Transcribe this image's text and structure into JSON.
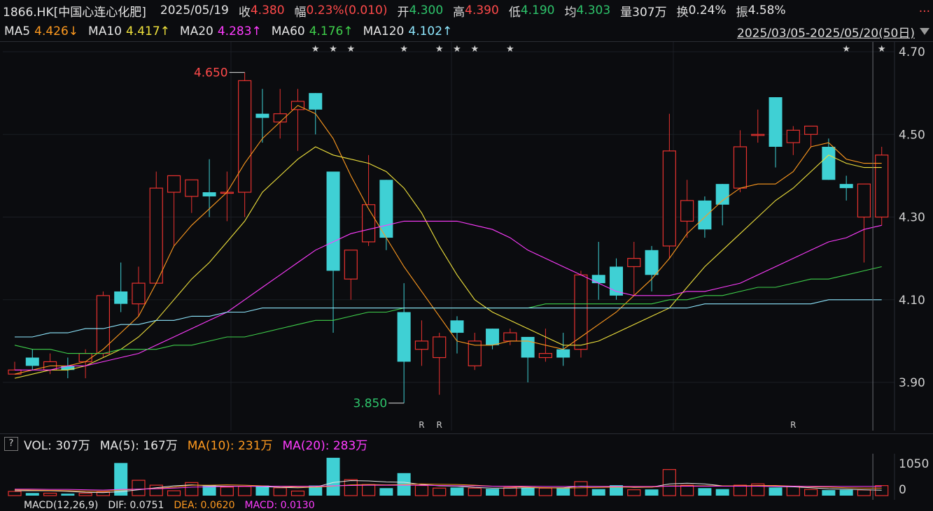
{
  "info": {
    "symbol": "1866.HK[中国心连心化肥]",
    "date": "2025/05/19",
    "close_label": "收",
    "close": "4.380",
    "change_label": "幅",
    "change": "0.23%(0.010)",
    "open_label": "开",
    "open": "4.300",
    "high_label": "高",
    "high": "4.390",
    "low_label": "低",
    "low": "4.190",
    "avg_label": "均",
    "avg": "4.303",
    "volume_label": "量",
    "volume": "307万",
    "turnover_label": "换",
    "turnover": "0.24%",
    "amplitude_label": "振",
    "amplitude": "4.58%",
    "more": "..."
  },
  "ma_bar": {
    "ma5_label": "MA5",
    "ma5": "4.426↓",
    "ma10_label": "MA10",
    "ma10": "4.417↑",
    "ma20_label": "MA20",
    "ma20": "4.283↑",
    "ma60_label": "MA60",
    "ma60": "4.176↑",
    "ma120_label": "MA120",
    "ma120": "4.102↑",
    "range": "2025/03/05-2025/05/20(50日)"
  },
  "vol_bar": {
    "help": "?",
    "vol": "VOL: 307万",
    "ma5": "MA(5): 167万",
    "ma10": "MA(10): 231万",
    "ma20": "MA(20): 283万"
  },
  "macd_bar": {
    "label": "MACD(12,26,9)",
    "dif": "DIF: 0.0751",
    "dea": "DEA: 0.0620",
    "macd": "MACD: 0.0130"
  },
  "colors": {
    "up": "#e8322f",
    "down": "#3fd0d4",
    "ma5": "#ff9a1f",
    "ma10": "#f0e23c",
    "ma20": "#ff3cff",
    "ma60": "#3fd14b",
    "ma120": "#8fe8ff"
  },
  "chart_data": [
    {
      "type": "candlestick",
      "title": "",
      "y_ticks": [
        "4.70",
        "4.50",
        "4.30",
        "4.10",
        "3.90"
      ],
      "ylim": [
        3.82,
        4.72
      ],
      "max_annotation": {
        "label": "4.650",
        "index": 13
      },
      "min_annotation": {
        "label": "3.850",
        "index": 22
      },
      "stars_at": [
        17,
        18,
        19,
        22,
        24,
        25,
        26,
        28,
        47,
        49
      ],
      "r_marks_at": [
        23,
        24,
        44
      ],
      "candles": [
        {
          "o": 3.92,
          "h": 3.95,
          "l": 3.92,
          "c": 3.93
        },
        {
          "o": 3.96,
          "h": 3.98,
          "l": 3.93,
          "c": 3.94
        },
        {
          "o": 3.93,
          "h": 3.97,
          "l": 3.92,
          "c": 3.95
        },
        {
          "o": 3.94,
          "h": 3.96,
          "l": 3.91,
          "c": 3.93
        },
        {
          "o": 3.95,
          "h": 3.98,
          "l": 3.91,
          "c": 3.97
        },
        {
          "o": 3.97,
          "h": 4.12,
          "l": 3.96,
          "c": 4.11
        },
        {
          "o": 4.12,
          "h": 4.19,
          "l": 4.07,
          "c": 4.09
        },
        {
          "o": 4.09,
          "h": 4.18,
          "l": 4.06,
          "c": 4.14
        },
        {
          "o": 4.14,
          "h": 4.41,
          "l": 4.14,
          "c": 4.37
        },
        {
          "o": 4.36,
          "h": 4.4,
          "l": 4.23,
          "c": 4.4
        },
        {
          "o": 4.35,
          "h": 4.39,
          "l": 4.31,
          "c": 4.39
        },
        {
          "o": 4.36,
          "h": 4.44,
          "l": 4.3,
          "c": 4.35
        },
        {
          "o": 4.36,
          "h": 4.41,
          "l": 4.29,
          "c": 4.36
        },
        {
          "o": 4.36,
          "h": 4.65,
          "l": 4.3,
          "c": 4.63
        },
        {
          "o": 4.55,
          "h": 4.61,
          "l": 4.48,
          "c": 4.54
        },
        {
          "o": 4.53,
          "h": 4.61,
          "l": 4.49,
          "c": 4.55
        },
        {
          "o": 4.56,
          "h": 4.61,
          "l": 4.46,
          "c": 4.58
        },
        {
          "o": 4.6,
          "h": 4.6,
          "l": 4.5,
          "c": 4.56
        },
        {
          "o": 4.41,
          "h": 4.41,
          "l": 4.02,
          "c": 4.17
        },
        {
          "o": 4.15,
          "h": 4.22,
          "l": 4.1,
          "c": 4.22
        },
        {
          "o": 4.24,
          "h": 4.45,
          "l": 4.23,
          "c": 4.33
        },
        {
          "o": 4.39,
          "h": 4.39,
          "l": 4.22,
          "c": 4.25
        },
        {
          "o": 4.07,
          "h": 4.14,
          "l": 3.85,
          "c": 3.95
        },
        {
          "o": 3.98,
          "h": 4.05,
          "l": 3.94,
          "c": 4.0
        },
        {
          "o": 3.96,
          "h": 4.02,
          "l": 3.87,
          "c": 4.01
        },
        {
          "o": 4.05,
          "h": 4.06,
          "l": 3.97,
          "c": 4.02
        },
        {
          "o": 3.94,
          "h": 4.02,
          "l": 3.93,
          "c": 4.0
        },
        {
          "o": 4.03,
          "h": 4.03,
          "l": 3.98,
          "c": 3.99
        },
        {
          "o": 4.0,
          "h": 4.03,
          "l": 3.99,
          "c": 4.02
        },
        {
          "o": 4.01,
          "h": 4.01,
          "l": 3.9,
          "c": 3.96
        },
        {
          "o": 3.96,
          "h": 4.03,
          "l": 3.95,
          "c": 3.97
        },
        {
          "o": 3.98,
          "h": 4.02,
          "l": 3.94,
          "c": 3.96
        },
        {
          "o": 3.98,
          "h": 4.17,
          "l": 3.96,
          "c": 4.16
        },
        {
          "o": 4.16,
          "h": 4.24,
          "l": 4.1,
          "c": 4.14
        },
        {
          "o": 4.18,
          "h": 4.2,
          "l": 4.1,
          "c": 4.11
        },
        {
          "o": 4.18,
          "h": 4.24,
          "l": 4.11,
          "c": 4.2
        },
        {
          "o": 4.22,
          "h": 4.23,
          "l": 4.12,
          "c": 4.16
        },
        {
          "o": 4.23,
          "h": 4.55,
          "l": 4.2,
          "c": 4.46
        },
        {
          "o": 4.29,
          "h": 4.39,
          "l": 4.25,
          "c": 4.34
        },
        {
          "o": 4.34,
          "h": 4.35,
          "l": 4.25,
          "c": 4.27
        },
        {
          "o": 4.38,
          "h": 4.38,
          "l": 4.28,
          "c": 4.33
        },
        {
          "o": 4.37,
          "h": 4.51,
          "l": 4.36,
          "c": 4.47
        },
        {
          "o": 4.5,
          "h": 4.56,
          "l": 4.48,
          "c": 4.5
        },
        {
          "o": 4.59,
          "h": 4.59,
          "l": 4.42,
          "c": 4.47
        },
        {
          "o": 4.48,
          "h": 4.52,
          "l": 4.45,
          "c": 4.51
        },
        {
          "o": 4.5,
          "h": 4.52,
          "l": 4.47,
          "c": 4.52
        },
        {
          "o": 4.47,
          "h": 4.49,
          "l": 4.39,
          "c": 4.39
        },
        {
          "o": 4.38,
          "h": 4.4,
          "l": 4.34,
          "c": 4.37
        },
        {
          "o": 4.3,
          "h": 4.38,
          "l": 4.19,
          "c": 4.38
        },
        {
          "o": 4.3,
          "h": 4.47,
          "l": 4.28,
          "c": 4.45
        }
      ],
      "series": [
        {
          "name": "MA5",
          "values": [
            3.92,
            3.93,
            3.94,
            3.94,
            3.95,
            3.98,
            4.02,
            4.06,
            4.14,
            4.23,
            4.28,
            4.32,
            4.36,
            4.43,
            4.49,
            4.53,
            4.57,
            4.55,
            4.49,
            4.4,
            4.32,
            4.25,
            4.18,
            4.12,
            4.06,
            4.0,
            3.99,
            3.99,
            4.0,
            4.0,
            3.99,
            3.98,
            4.01,
            4.04,
            4.07,
            4.11,
            4.15,
            4.2,
            4.26,
            4.3,
            4.34,
            4.37,
            4.38,
            4.38,
            4.41,
            4.47,
            4.48,
            4.44,
            4.43,
            4.43
          ]
        },
        {
          "name": "MA10",
          "values": [
            3.91,
            3.92,
            3.93,
            3.93,
            3.94,
            3.96,
            3.98,
            4.01,
            4.05,
            4.1,
            4.15,
            4.19,
            4.24,
            4.29,
            4.36,
            4.4,
            4.44,
            4.47,
            4.45,
            4.44,
            4.43,
            4.41,
            4.37,
            4.31,
            4.23,
            4.16,
            4.1,
            4.07,
            4.05,
            4.03,
            4.01,
            3.99,
            3.99,
            4.0,
            4.02,
            4.04,
            4.06,
            4.08,
            4.13,
            4.18,
            4.22,
            4.26,
            4.3,
            4.34,
            4.37,
            4.41,
            4.45,
            4.43,
            4.42,
            4.42
          ]
        },
        {
          "name": "MA20",
          "values": [
            3.93,
            3.93,
            3.93,
            3.94,
            3.94,
            3.95,
            3.96,
            3.97,
            3.99,
            4.01,
            4.03,
            4.05,
            4.07,
            4.1,
            4.13,
            4.16,
            4.19,
            4.22,
            4.24,
            4.26,
            4.27,
            4.28,
            4.29,
            4.29,
            4.29,
            4.29,
            4.28,
            4.27,
            4.25,
            4.22,
            4.2,
            4.18,
            4.16,
            4.14,
            4.12,
            4.11,
            4.11,
            4.11,
            4.12,
            4.12,
            4.13,
            4.14,
            4.16,
            4.18,
            4.2,
            4.22,
            4.24,
            4.25,
            4.27,
            4.28
          ]
        },
        {
          "name": "MA60",
          "values": [
            3.99,
            3.98,
            3.98,
            3.97,
            3.97,
            3.97,
            3.98,
            3.98,
            3.98,
            3.99,
            3.99,
            4.0,
            4.01,
            4.01,
            4.02,
            4.03,
            4.04,
            4.05,
            4.05,
            4.06,
            4.07,
            4.07,
            4.08,
            4.08,
            4.08,
            4.08,
            4.08,
            4.08,
            4.08,
            4.08,
            4.09,
            4.09,
            4.09,
            4.09,
            4.09,
            4.09,
            4.09,
            4.1,
            4.1,
            4.11,
            4.11,
            4.12,
            4.13,
            4.13,
            4.14,
            4.15,
            4.15,
            4.16,
            4.17,
            4.18
          ]
        },
        {
          "name": "MA120",
          "values": [
            4.01,
            4.01,
            4.02,
            4.02,
            4.03,
            4.03,
            4.04,
            4.04,
            4.05,
            4.05,
            4.06,
            4.06,
            4.07,
            4.07,
            4.08,
            4.08,
            4.08,
            4.08,
            4.08,
            4.08,
            4.08,
            4.08,
            4.08,
            4.08,
            4.08,
            4.08,
            4.08,
            4.08,
            4.08,
            4.08,
            4.08,
            4.08,
            4.08,
            4.08,
            4.08,
            4.08,
            4.08,
            4.08,
            4.08,
            4.09,
            4.09,
            4.09,
            4.09,
            4.09,
            4.09,
            4.09,
            4.1,
            4.1,
            4.1,
            4.1
          ]
        }
      ]
    },
    {
      "type": "bar",
      "title": "",
      "y_ticks": [
        "1050",
        "0"
      ],
      "ylim": [
        0,
        1200
      ],
      "values": [
        130,
        80,
        75,
        60,
        75,
        110,
        1000,
        470,
        320,
        150,
        400,
        320,
        260,
        280,
        310,
        240,
        140,
        310,
        1160,
        490,
        340,
        230,
        690,
        310,
        230,
        250,
        230,
        210,
        250,
        240,
        230,
        230,
        430,
        200,
        320,
        180,
        190,
        800,
        320,
        230,
        200,
        320,
        360,
        250,
        290,
        190,
        170,
        180,
        175,
        307
      ],
      "series": [
        {
          "name": "MA(5)",
          "values": [
            150,
            150,
            150,
            130,
            100,
            90,
            120,
            180,
            240,
            300,
            330,
            300,
            290,
            290,
            280,
            250,
            240,
            260,
            400,
            460,
            450,
            420,
            410,
            340,
            300,
            290,
            250,
            230,
            230,
            240,
            240,
            240,
            290,
            280,
            280,
            250,
            260,
            360,
            380,
            360,
            300,
            290,
            290,
            280,
            270,
            240,
            210,
            200,
            180,
            167
          ]
        },
        {
          "name": "MA(10)",
          "values": [
            180,
            170,
            160,
            150,
            140,
            130,
            170,
            200,
            220,
            260,
            320,
            320,
            330,
            320,
            300,
            280,
            260,
            260,
            290,
            330,
            340,
            330,
            340,
            360,
            350,
            340,
            320,
            290,
            280,
            260,
            240,
            230,
            240,
            250,
            260,
            260,
            260,
            300,
            300,
            300,
            300,
            300,
            310,
            310,
            290,
            270,
            260,
            240,
            230,
            231
          ]
        },
        {
          "name": "MA(20)",
          "values": [
            200,
            200,
            190,
            190,
            180,
            170,
            190,
            200,
            210,
            230,
            260,
            270,
            280,
            290,
            290,
            290,
            290,
            290,
            300,
            310,
            320,
            320,
            320,
            320,
            310,
            300,
            300,
            290,
            290,
            290,
            280,
            280,
            280,
            280,
            280,
            280,
            280,
            290,
            290,
            290,
            290,
            290,
            290,
            290,
            290,
            285,
            285,
            285,
            283,
            283
          ]
        }
      ]
    }
  ]
}
